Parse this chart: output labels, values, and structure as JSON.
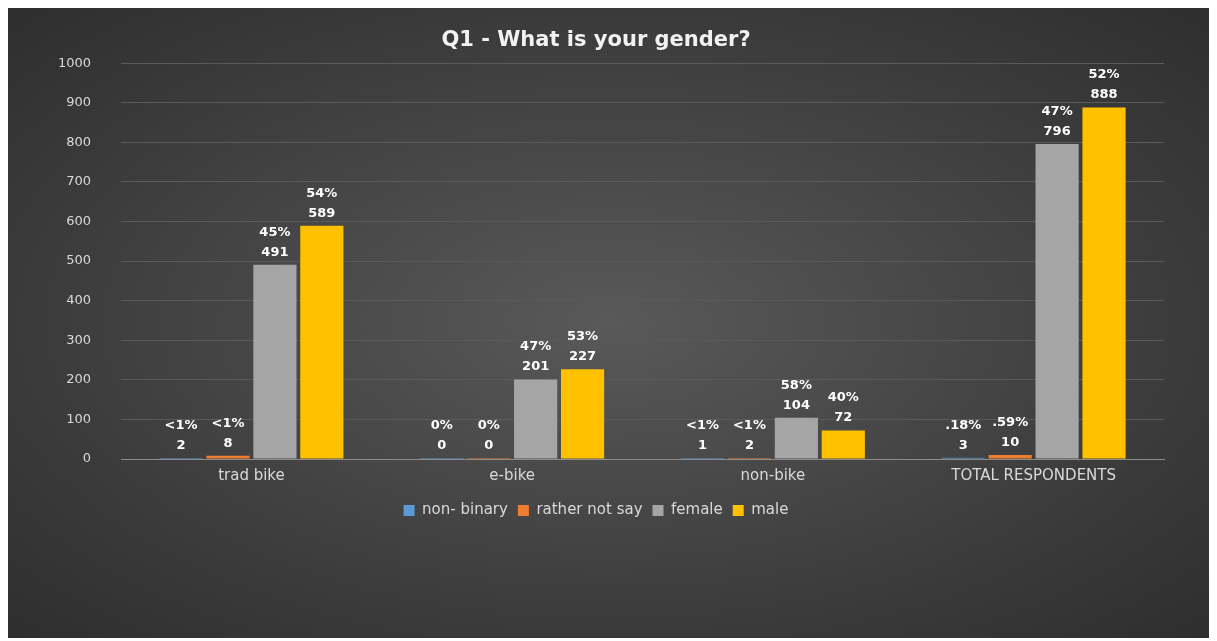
{
  "chart_data": {
    "type": "bar",
    "title": "Q1 - What is your gender?",
    "categories": [
      "trad bike",
      "e-bike",
      "non-bike",
      "TOTAL RESPONDENTS"
    ],
    "series": [
      {
        "name": "non- binary",
        "color": "#5b9bd5",
        "values": [
          2,
          0,
          1,
          3
        ],
        "value_labels": [
          "<1%\n2",
          "0%\n0",
          "<1%\n1",
          ".18%\n3"
        ]
      },
      {
        "name": "rather not say",
        "color": "#ed7d31",
        "values": [
          8,
          0,
          2,
          10
        ],
        "value_labels": [
          "<1%\n8",
          "0%\n0",
          "<1%\n2",
          ".59%\n10"
        ]
      },
      {
        "name": "female",
        "color": "#a5a5a5",
        "values": [
          491,
          201,
          104,
          796
        ],
        "value_labels": [
          "45%\n491",
          "47%\n201",
          "58%\n104",
          "47%\n796"
        ]
      },
      {
        "name": "male",
        "color": "#ffc000",
        "values": [
          589,
          227,
          72,
          888
        ],
        "value_labels": [
          "54%\n589",
          "53%\n227",
          "40%\n72",
          "52%\n888"
        ]
      }
    ],
    "ylim": [
      0,
      1000
    ],
    "yticks": [
      0,
      100,
      200,
      300,
      400,
      500,
      600,
      700,
      800,
      900,
      1000
    ],
    "grid": "y",
    "legend": "bottom"
  }
}
